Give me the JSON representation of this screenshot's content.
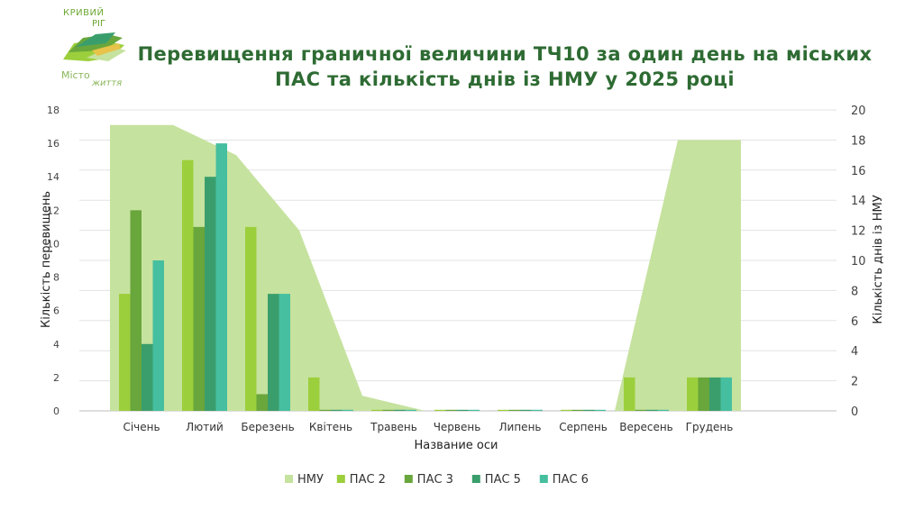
{
  "logo": {
    "line1": "КРИВИЙ",
    "line2": "РІГ",
    "line3": "Місто",
    "line4": "життя"
  },
  "chart_data": {
    "type": "bar",
    "title_lines": [
      "Перевищення граничної величини ТЧ10 за один день на міських",
      "ПАС та кількість днів із НМУ у 2025 році"
    ],
    "xlabel": "Название оси",
    "ylabel": "Кількість перевищень",
    "y2label": "Кількість днів із НМУ",
    "ylim": [
      0,
      18
    ],
    "yticks": [
      0,
      2,
      4,
      6,
      8,
      10,
      12,
      14,
      16,
      18
    ],
    "y2lim": [
      0,
      20
    ],
    "y2ticks": [
      0,
      2,
      4,
      6,
      8,
      10,
      12,
      14,
      16,
      18,
      20
    ],
    "grid": true,
    "legend_position": "bottom",
    "categories": [
      "Січень",
      "Лютий",
      "Березень",
      "Квітень",
      "Травень",
      "Червень",
      "Липень",
      "Серпень",
      "Вересень",
      "Грудень"
    ],
    "area_series": {
      "name": "НМУ",
      "axis": "right",
      "color": "#c6e29f",
      "values": [
        19,
        19,
        17,
        12,
        1,
        0,
        0,
        0,
        0,
        18
      ]
    },
    "series": [
      {
        "name": "ПАС 2",
        "color": "#9ccf3c",
        "values": [
          7,
          15,
          11,
          2,
          0,
          0,
          0,
          0,
          2,
          2
        ]
      },
      {
        "name": "ПАС 3",
        "color": "#69a63c",
        "values": [
          12,
          11,
          1,
          0,
          0,
          0,
          0,
          0,
          0,
          2
        ]
      },
      {
        "name": "ПАС 5",
        "color": "#3a9e6c",
        "values": [
          4,
          14,
          7,
          0,
          0,
          0,
          0,
          0,
          0,
          2
        ]
      },
      {
        "name": "ПАС 6",
        "color": "#45bf9f",
        "values": [
          9,
          16,
          7,
          0,
          0,
          0,
          0,
          0,
          0,
          2
        ]
      }
    ]
  }
}
